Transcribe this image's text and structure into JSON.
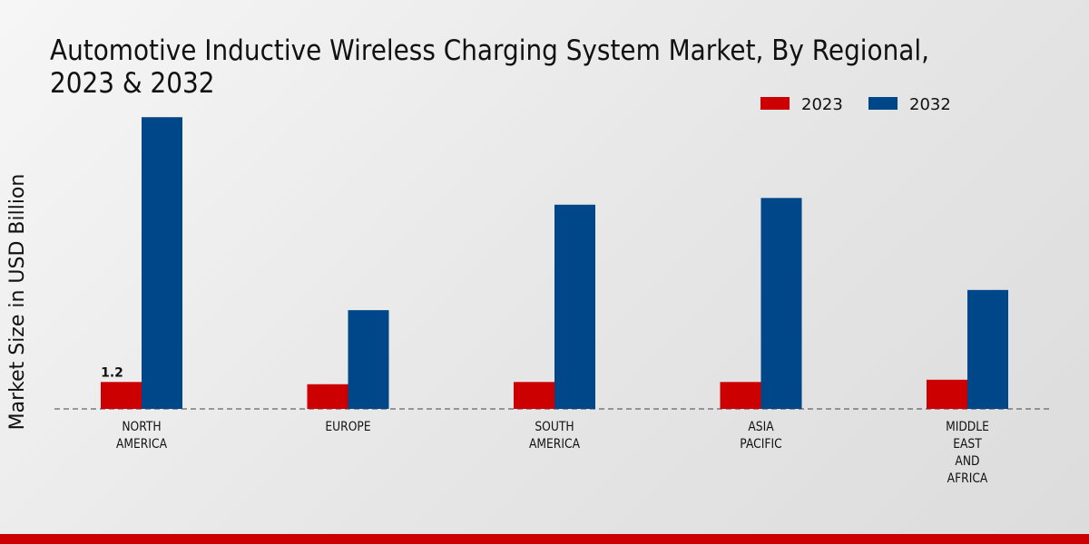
{
  "chart_data": {
    "type": "bar",
    "title": "Automotive Inductive Wireless Charging System Market, By Regional, 2023 & 2032",
    "xlabel": "",
    "ylabel": "Market Size in USD Billion",
    "categories": [
      [
        "NORTH",
        "AMERICA"
      ],
      [
        "EUROPE"
      ],
      [
        "SOUTH",
        "AMERICA"
      ],
      [
        "ASIA",
        "PACIFIC"
      ],
      [
        "MIDDLE",
        "EAST",
        "AND",
        "AFRICA"
      ]
    ],
    "series": [
      {
        "name": "2023",
        "color": "#cc0000",
        "values": [
          1.2,
          1.1,
          1.2,
          1.2,
          1.3
        ]
      },
      {
        "name": "2032",
        "color": "#00478a",
        "values": [
          13.0,
          4.4,
          9.1,
          9.4,
          5.3
        ]
      }
    ],
    "data_labels": [
      {
        "series": 0,
        "index": 0,
        "text": "1.2"
      }
    ],
    "ylim": [
      0,
      16
    ],
    "legend_position": "top-right",
    "grid": false
  }
}
